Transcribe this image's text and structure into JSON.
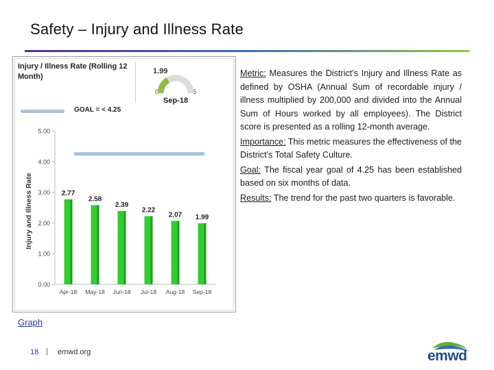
{
  "slide": {
    "title": "Safety – Injury and Illness Rate",
    "graph_link": "Graph",
    "footer_page": "18",
    "footer_sep": "|",
    "footer_url": "emwd.org",
    "logo_text": "emwd"
  },
  "kpi": {
    "title": "Injury / Illness Rate (Rolling 12 Month)",
    "value": "1.99",
    "gauge_min": "0",
    "gauge_max": "6",
    "period": "Sep-18",
    "goal_legend": "GOAL = < 4.25"
  },
  "text": {
    "metric_label": "Metric:",
    "metric_body": " Measures the District’s Injury and Illness Rate as defined by OSHA (Annual Sum of recordable injury / illness multiplied by 200,000 and divided into the Annual Sum of Hours worked by all employees). The District score is presented as a rolling 12-month average.",
    "importance_label": "Importance:",
    "importance_body": " This metric measures the effectiveness of the District’s Total Safety Culture.",
    "goal_label": "Goal:",
    "goal_body": " The fiscal year goal of 4.25 has been established based on six months of data.",
    "results_label": "Results:",
    "results_body": " The trend for the past two quarters is favorable."
  },
  "chart_data": {
    "type": "bar",
    "categories": [
      "Apr-18",
      "May-18",
      "Jun-18",
      "Jul-18",
      "Aug-18",
      "Sep-18"
    ],
    "values": [
      2.77,
      2.58,
      2.39,
      2.22,
      2.07,
      1.99
    ],
    "data_labels": [
      "2.77",
      "2.58",
      "2.39",
      "2.22",
      "2.07",
      "1.99"
    ],
    "ylabel": "Injury and Illness Rate",
    "ylim": [
      0,
      5
    ],
    "yticks": [
      "0.00",
      "1.00",
      "2.00",
      "3.00",
      "4.00",
      "5.00"
    ],
    "goal_value": 4.25,
    "gauge_value": 1.99,
    "gauge_range": [
      0,
      6
    ],
    "colors": {
      "bar": "#33cc33",
      "bar_shade": "#1e9e1e",
      "goal_line": "#a9c3dd",
      "gauge_track": "#dcdcdc",
      "gauge_fill": "#8fbc4a"
    },
    "grid": false
  }
}
